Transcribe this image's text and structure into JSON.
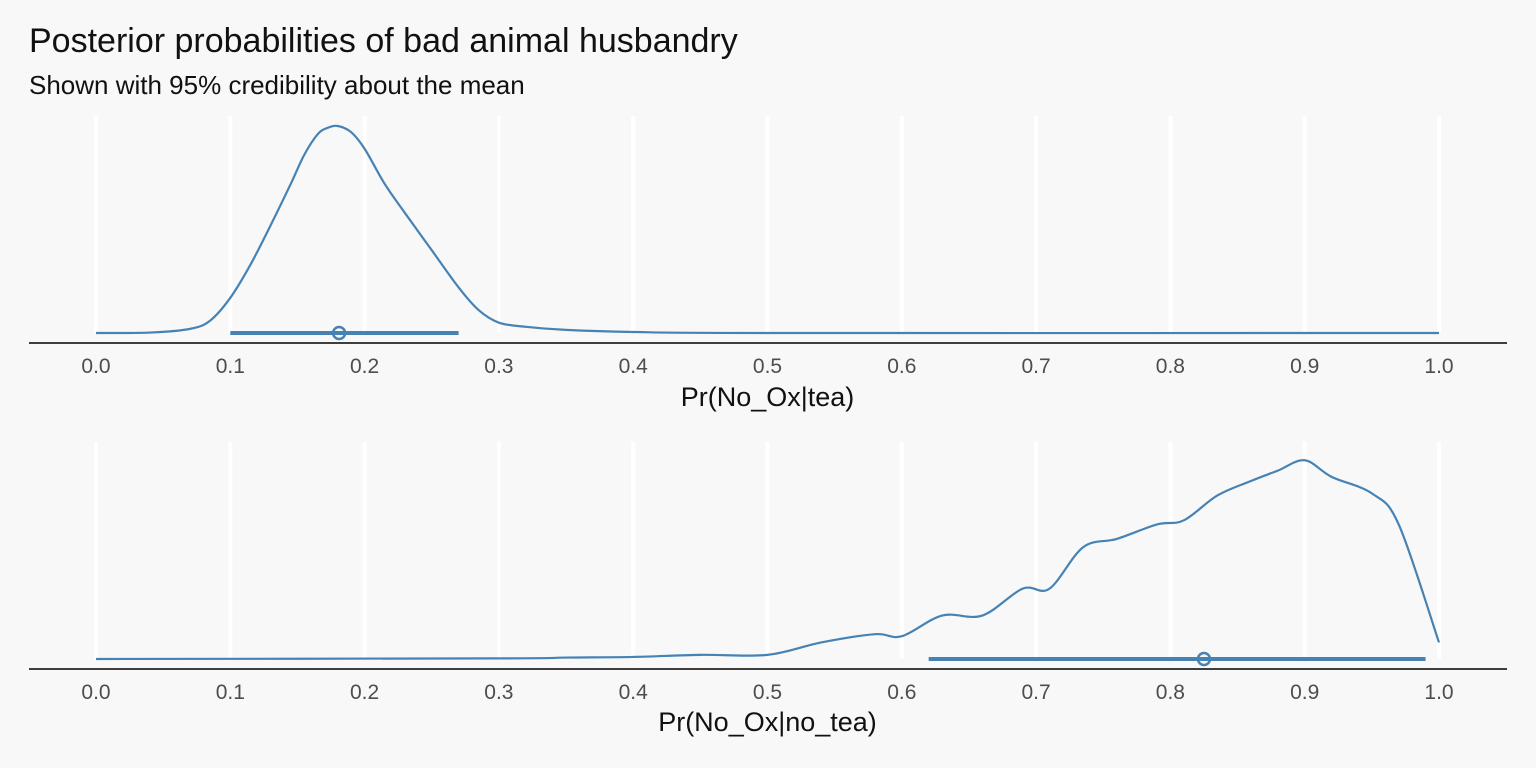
{
  "title": "Posterior probabilities of bad animal husbandry",
  "subtitle": "Shown with 95% credibility about the mean",
  "colors": {
    "background": "#f8f8f8",
    "gridline": "#ffffff",
    "series": "#4682b4",
    "axis": "#000000",
    "tick_label": "#4d4d4d"
  },
  "chart_data": [
    {
      "type": "area",
      "xlabel": "Pr(No_Ox|tea)",
      "xlim": [
        0,
        1
      ],
      "xticks": [
        "0.0",
        "0.1",
        "0.2",
        "0.3",
        "0.4",
        "0.5",
        "0.6",
        "0.7",
        "0.8",
        "0.9",
        "1.0"
      ],
      "grid": true,
      "density": {
        "x": [
          0.0,
          0.04,
          0.07,
          0.085,
          0.1,
          0.115,
          0.13,
          0.145,
          0.155,
          0.165,
          0.172,
          0.18,
          0.19,
          0.2,
          0.215,
          0.23,
          0.25,
          0.27,
          0.285,
          0.3,
          0.32,
          0.35,
          0.4,
          0.5,
          1.0
        ],
        "y": [
          0.0,
          0.002,
          0.02,
          0.06,
          0.17,
          0.33,
          0.52,
          0.72,
          0.86,
          0.96,
          0.99,
          1.0,
          0.97,
          0.89,
          0.72,
          0.58,
          0.4,
          0.22,
          0.11,
          0.05,
          0.03,
          0.015,
          0.005,
          0.0,
          0.0
        ]
      },
      "interval": {
        "mean": 0.181,
        "lower": 0.1,
        "upper": 0.27
      }
    },
    {
      "type": "area",
      "xlabel": "Pr(No_Ox|no_tea)",
      "xlim": [
        0,
        1
      ],
      "xticks": [
        "0.0",
        "0.1",
        "0.2",
        "0.3",
        "0.4",
        "0.5",
        "0.6",
        "0.7",
        "0.8",
        "0.9",
        "1.0"
      ],
      "grid": true,
      "density": {
        "x": [
          0.0,
          0.3,
          0.35,
          0.4,
          0.45,
          0.5,
          0.54,
          0.58,
          0.6,
          0.63,
          0.66,
          0.69,
          0.71,
          0.735,
          0.76,
          0.79,
          0.81,
          0.835,
          0.86,
          0.88,
          0.9,
          0.92,
          0.95,
          0.97,
          1.0
        ],
        "y": [
          0.0,
          0.003,
          0.007,
          0.01,
          0.02,
          0.02,
          0.08,
          0.12,
          0.11,
          0.21,
          0.21,
          0.34,
          0.34,
          0.54,
          0.58,
          0.65,
          0.67,
          0.79,
          0.86,
          0.91,
          0.96,
          0.88,
          0.8,
          0.65,
          0.08
        ]
      },
      "interval": {
        "mean": 0.825,
        "lower": 0.62,
        "upper": 0.99
      }
    }
  ]
}
